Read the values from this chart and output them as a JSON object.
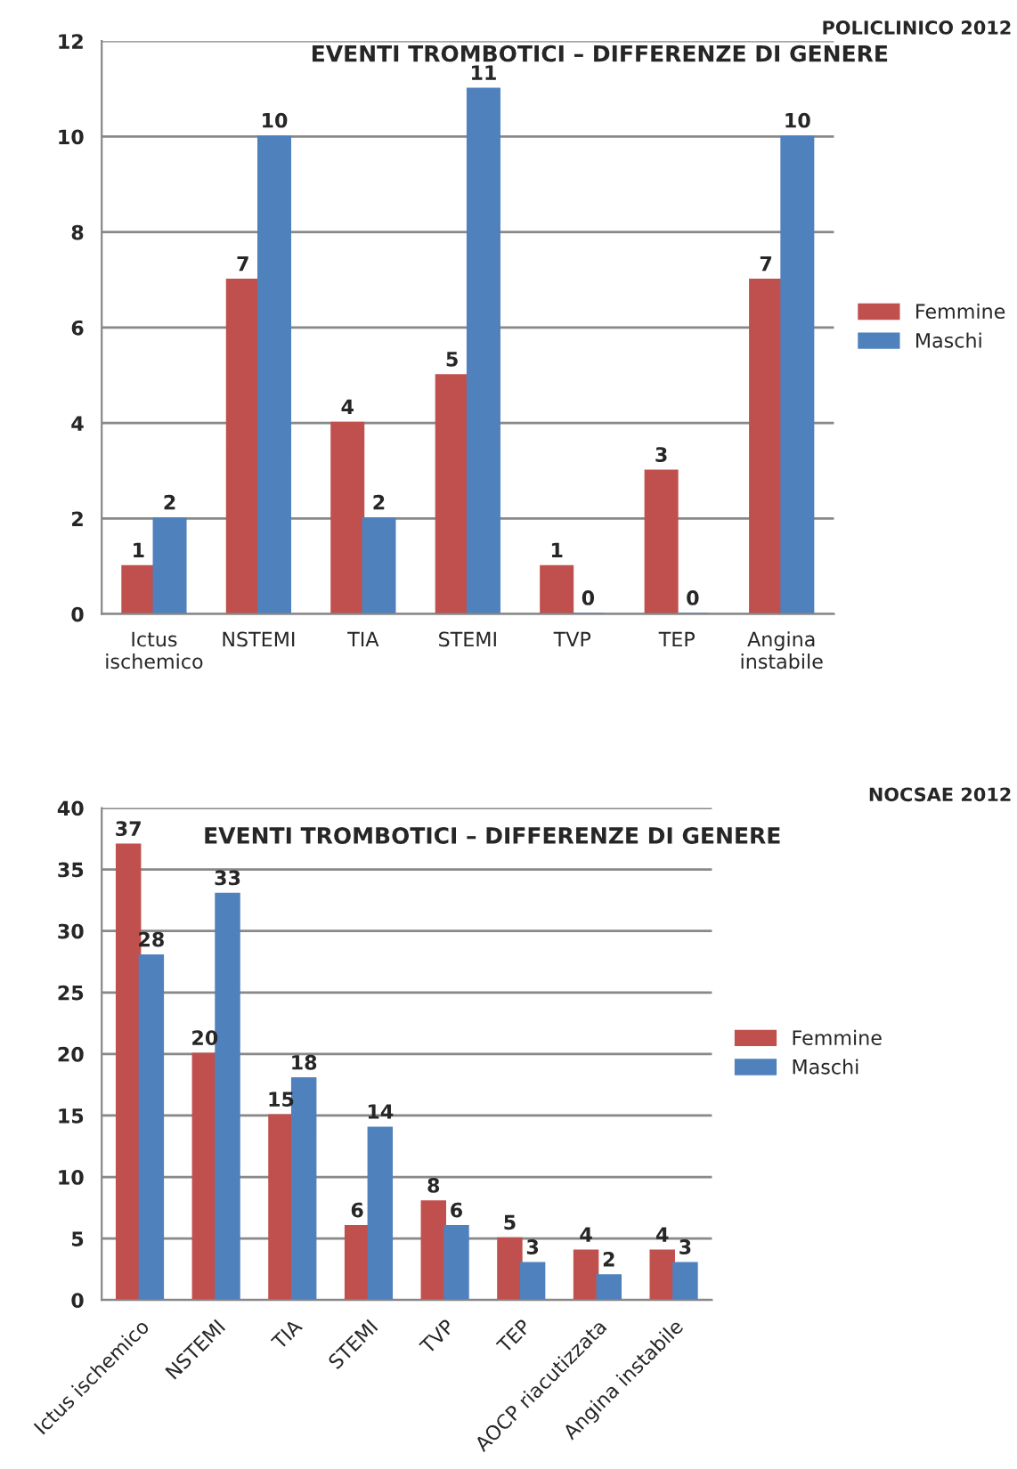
{
  "chart_data": [
    {
      "type": "bar",
      "title": "EVENTI TROMBOTICI – DIFFERENZE DI GENERE",
      "annotations": [
        "POLICLINICO 2012"
      ],
      "categories": [
        "Ictus\nischemico",
        "NSTEMI",
        "TIA",
        "STEMI",
        "TVP",
        "TEP",
        "Angina\ninstabile"
      ],
      "series": [
        {
          "name": "Femmine",
          "color": "#c0504d",
          "values": [
            1,
            7,
            4,
            5,
            1,
            3,
            7
          ]
        },
        {
          "name": "Maschi",
          "color": "#4f81bd",
          "values": [
            2,
            10,
            2,
            11,
            0,
            0,
            10
          ]
        }
      ],
      "ylim": [
        0,
        12
      ],
      "yticks": [
        0,
        2,
        4,
        6,
        8,
        10,
        12
      ],
      "grid": "y",
      "legend": "right",
      "data_labels": true
    },
    {
      "type": "bar",
      "title": "EVENTI TROMBOTICI – DIFFERENZE DI GENERE",
      "annotations": [
        "NOCSAE 2012"
      ],
      "categories": [
        "Ictus ischemico",
        "NSTEMI",
        "TIA",
        "STEMI",
        "TVP",
        "TEP",
        "AOCP riacutizzata",
        "Angina instabile"
      ],
      "series": [
        {
          "name": "Femmine",
          "color": "#c0504d",
          "values": [
            37,
            20,
            15,
            6,
            8,
            5,
            4,
            4
          ]
        },
        {
          "name": "Maschi",
          "color": "#4f81bd",
          "values": [
            28,
            33,
            18,
            14,
            6,
            3,
            2,
            3
          ]
        }
      ],
      "ylim": [
        0,
        40
      ],
      "yticks": [
        0,
        5,
        10,
        15,
        20,
        25,
        30,
        35,
        40
      ],
      "grid": "y",
      "legend": "right",
      "data_labels": true
    }
  ]
}
